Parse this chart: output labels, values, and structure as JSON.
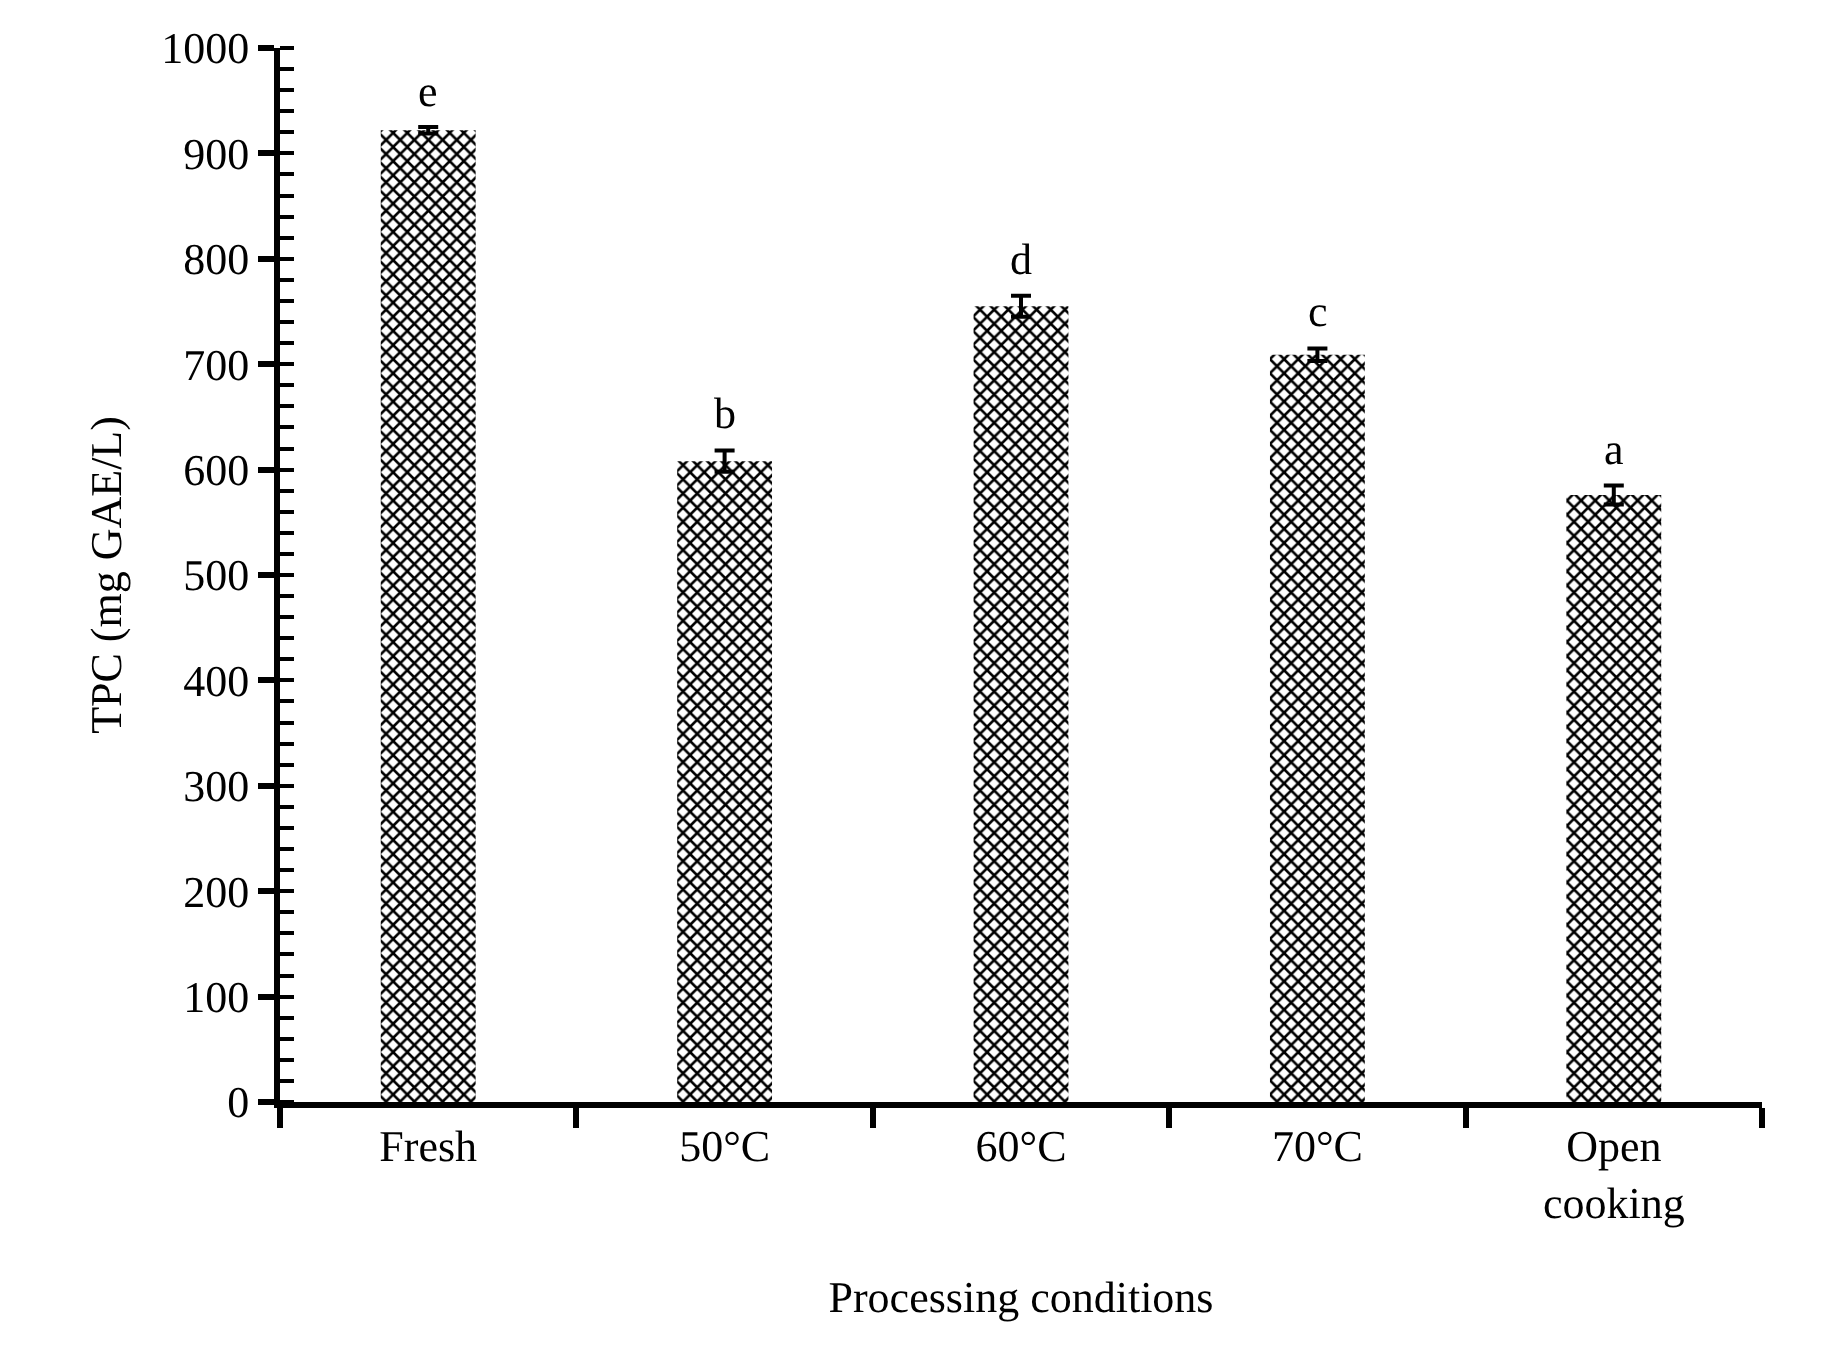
{
  "chart_data": {
    "type": "bar",
    "xlabel": "Processing conditions",
    "ylabel": "TPC (mg GAE/L)",
    "categories": [
      "Fresh",
      "50°C",
      "60°C",
      "70°C",
      "Open\ncooking"
    ],
    "values": [
      922,
      608,
      755,
      709,
      576
    ],
    "errors": [
      3,
      10,
      10,
      6,
      9
    ],
    "color": "#000000",
    "ylim": [
      0,
      1000
    ],
    "yticks": [
      0,
      100,
      200,
      300,
      400,
      500,
      600,
      700,
      800,
      900,
      1000
    ],
    "grid": false,
    "annotations": [
      {
        "text": "e",
        "x": "Fresh",
        "y": 925
      },
      {
        "text": "b",
        "x": "50°C",
        "y": 618
      },
      {
        "text": "d",
        "x": "60°C",
        "y": 765
      },
      {
        "text": "c",
        "x": "70°C",
        "y": 715
      },
      {
        "text": "a",
        "x": "Open\ncooking",
        "y": 585
      }
    ]
  }
}
